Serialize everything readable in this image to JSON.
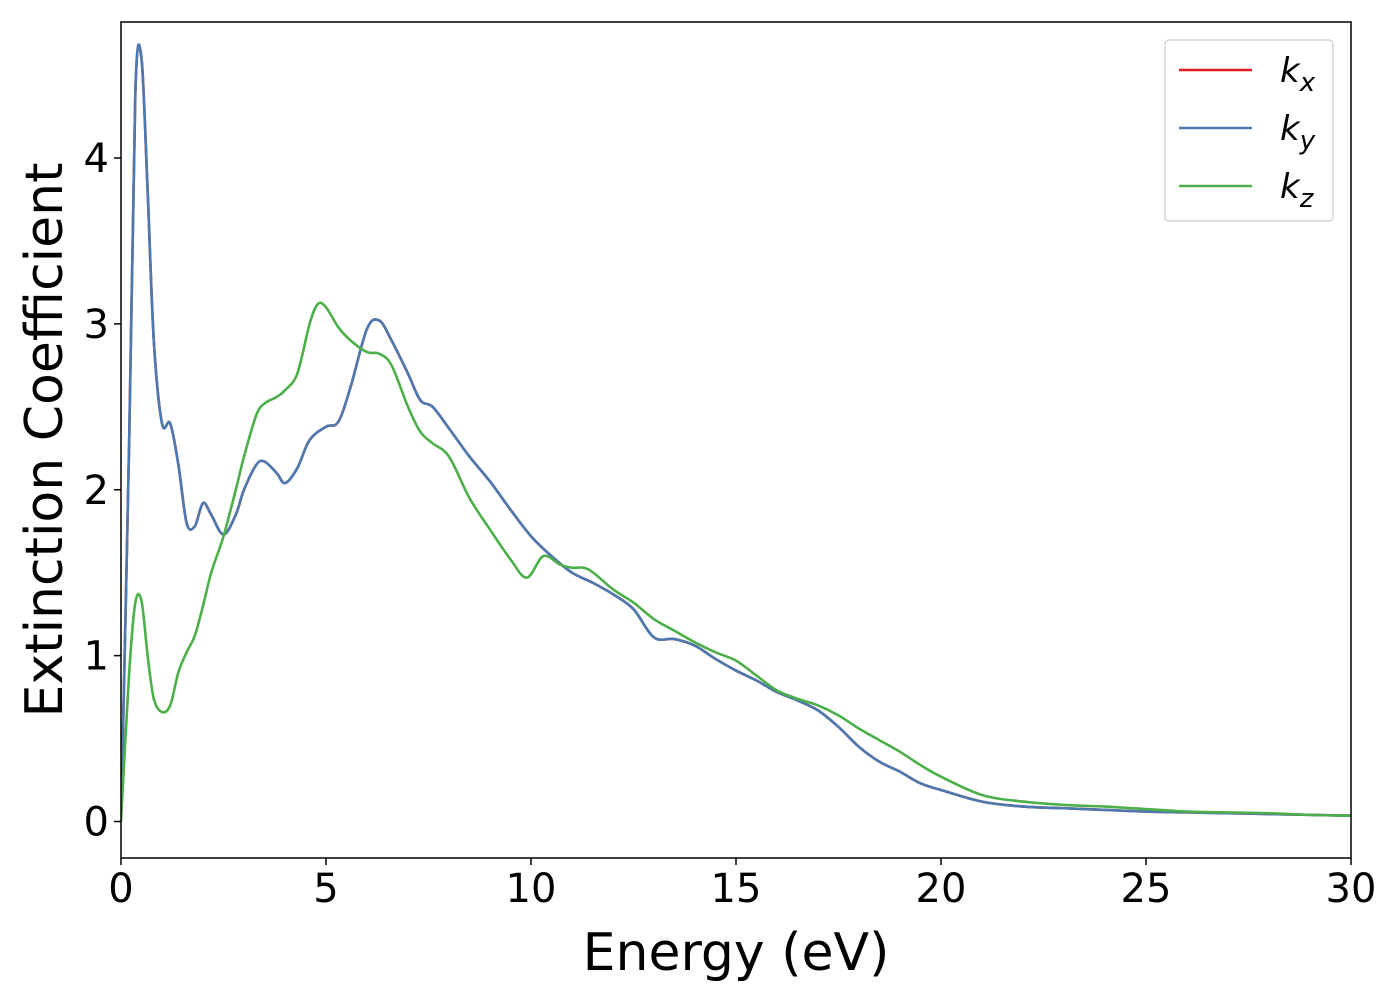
{
  "chart_data": {
    "type": "line",
    "xlabel": "Energy (eV)",
    "ylabel": "Extinction Coefficient",
    "xlim": [
      0,
      30
    ],
    "ylim": [
      -0.22,
      4.82
    ],
    "xticks": [
      0,
      5,
      10,
      15,
      20,
      25,
      30
    ],
    "yticks": [
      0,
      1,
      2,
      3,
      4
    ],
    "grid": false,
    "legend_position": "top-right",
    "series": [
      {
        "name": "k_x",
        "label_main": "k",
        "label_sub": "x",
        "color": "#e41a1c",
        "x": [
          0,
          0.2,
          0.35,
          0.5,
          0.65,
          0.8,
          1.0,
          1.2,
          1.4,
          1.6,
          1.8,
          2.0,
          2.2,
          2.5,
          2.8,
          3.0,
          3.3,
          3.5,
          3.8,
          4.0,
          4.3,
          4.6,
          5.0,
          5.3,
          5.6,
          6.0,
          6.3,
          6.6,
          7.0,
          7.3,
          7.6,
          8.0,
          8.5,
          9.0,
          9.5,
          10.0,
          10.5,
          11.0,
          11.5,
          12.0,
          12.5,
          13.0,
          13.5,
          14.0,
          14.5,
          15.0,
          15.5,
          16.0,
          16.5,
          17.0,
          17.5,
          18.0,
          18.5,
          19.0,
          19.5,
          20.0,
          21.0,
          22.0,
          23.0,
          24.0,
          25.0,
          26.0,
          27.0,
          28.0,
          29.0,
          30.0
        ],
        "y": [
          0.0,
          2.3,
          4.4,
          4.6,
          3.8,
          2.9,
          2.4,
          2.4,
          2.15,
          1.8,
          1.78,
          1.92,
          1.85,
          1.73,
          1.85,
          2.0,
          2.15,
          2.17,
          2.1,
          2.04,
          2.13,
          2.3,
          2.38,
          2.41,
          2.62,
          2.97,
          3.02,
          2.9,
          2.7,
          2.54,
          2.5,
          2.37,
          2.2,
          2.05,
          1.88,
          1.72,
          1.6,
          1.5,
          1.44,
          1.37,
          1.28,
          1.11,
          1.1,
          1.06,
          0.98,
          0.91,
          0.85,
          0.78,
          0.73,
          0.67,
          0.57,
          0.45,
          0.36,
          0.3,
          0.23,
          0.19,
          0.12,
          0.09,
          0.08,
          0.07,
          0.06,
          0.055,
          0.05,
          0.045,
          0.04,
          0.035
        ]
      },
      {
        "name": "k_y",
        "label_main": "k",
        "label_sub": "y",
        "color": "#4a7ab0",
        "x": [
          0,
          0.2,
          0.35,
          0.5,
          0.65,
          0.8,
          1.0,
          1.2,
          1.4,
          1.6,
          1.8,
          2.0,
          2.2,
          2.5,
          2.8,
          3.0,
          3.3,
          3.5,
          3.8,
          4.0,
          4.3,
          4.6,
          5.0,
          5.3,
          5.6,
          6.0,
          6.3,
          6.6,
          7.0,
          7.3,
          7.6,
          8.0,
          8.5,
          9.0,
          9.5,
          10.0,
          10.5,
          11.0,
          11.5,
          12.0,
          12.5,
          13.0,
          13.5,
          14.0,
          14.5,
          15.0,
          15.5,
          16.0,
          16.5,
          17.0,
          17.5,
          18.0,
          18.5,
          19.0,
          19.5,
          20.0,
          21.0,
          22.0,
          23.0,
          24.0,
          25.0,
          26.0,
          27.0,
          28.0,
          29.0,
          30.0
        ],
        "y": [
          0.0,
          2.3,
          4.4,
          4.6,
          3.8,
          2.9,
          2.4,
          2.4,
          2.15,
          1.8,
          1.78,
          1.92,
          1.85,
          1.73,
          1.85,
          2.0,
          2.15,
          2.17,
          2.1,
          2.04,
          2.13,
          2.3,
          2.38,
          2.41,
          2.62,
          2.97,
          3.02,
          2.9,
          2.7,
          2.54,
          2.5,
          2.37,
          2.2,
          2.05,
          1.88,
          1.72,
          1.6,
          1.5,
          1.44,
          1.37,
          1.28,
          1.11,
          1.1,
          1.06,
          0.98,
          0.91,
          0.85,
          0.78,
          0.73,
          0.67,
          0.57,
          0.45,
          0.36,
          0.3,
          0.23,
          0.19,
          0.12,
          0.09,
          0.08,
          0.07,
          0.06,
          0.055,
          0.05,
          0.045,
          0.04,
          0.035
        ]
      },
      {
        "name": "k_z",
        "label_main": "k",
        "label_sub": "z",
        "color": "#4daf4a",
        "x": [
          0,
          0.2,
          0.35,
          0.5,
          0.65,
          0.8,
          1.0,
          1.2,
          1.4,
          1.6,
          1.8,
          2.0,
          2.2,
          2.5,
          2.8,
          3.0,
          3.3,
          3.5,
          3.8,
          4.0,
          4.3,
          4.6,
          4.8,
          5.0,
          5.3,
          5.6,
          6.0,
          6.3,
          6.6,
          7.0,
          7.3,
          7.6,
          8.0,
          8.5,
          9.0,
          9.5,
          9.9,
          10.3,
          10.7,
          11.0,
          11.4,
          12.0,
          12.5,
          13.0,
          13.5,
          14.0,
          14.5,
          15.0,
          15.5,
          16.0,
          16.5,
          17.0,
          17.5,
          18.0,
          18.5,
          19.0,
          19.5,
          20.0,
          21.0,
          22.0,
          23.0,
          24.0,
          25.0,
          26.0,
          27.0,
          28.0,
          29.0,
          30.0
        ],
        "y": [
          0.0,
          0.9,
          1.32,
          1.33,
          1.0,
          0.74,
          0.66,
          0.7,
          0.9,
          1.02,
          1.12,
          1.3,
          1.5,
          1.72,
          2.0,
          2.2,
          2.45,
          2.52,
          2.56,
          2.6,
          2.7,
          3.0,
          3.12,
          3.1,
          2.98,
          2.9,
          2.83,
          2.82,
          2.75,
          2.5,
          2.35,
          2.28,
          2.2,
          1.95,
          1.76,
          1.58,
          1.47,
          1.6,
          1.55,
          1.53,
          1.52,
          1.4,
          1.32,
          1.22,
          1.15,
          1.08,
          1.02,
          0.97,
          0.88,
          0.79,
          0.74,
          0.7,
          0.64,
          0.56,
          0.49,
          0.42,
          0.34,
          0.27,
          0.16,
          0.12,
          0.1,
          0.09,
          0.075,
          0.06,
          0.055,
          0.05,
          0.04,
          0.035
        ]
      }
    ]
  }
}
